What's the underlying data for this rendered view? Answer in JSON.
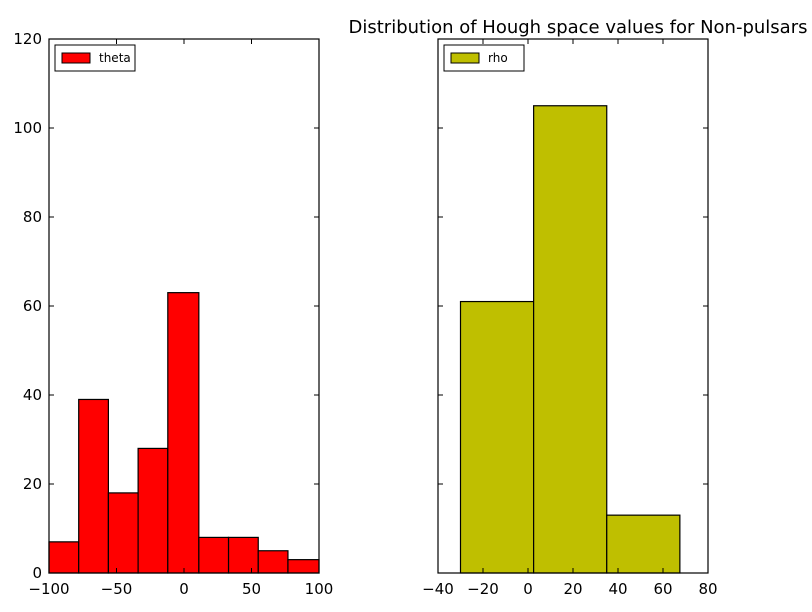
{
  "chart_data": [
    {
      "type": "bar",
      "subtype": "histogram",
      "title": "",
      "xlabel": "",
      "ylabel": "",
      "xlim": [
        -100,
        100
      ],
      "ylim": [
        0,
        120
      ],
      "xticks": [
        -100,
        -50,
        0,
        50,
        100
      ],
      "yticks": [
        0,
        20,
        40,
        60,
        80,
        100,
        120
      ],
      "xtick_labels": [
        "−100",
        "−50",
        "0",
        "50",
        "100"
      ],
      "ytick_labels": [
        "0",
        "20",
        "40",
        "60",
        "80",
        "100",
        "120"
      ],
      "bin_edges": [
        -100,
        -78,
        -56,
        -34,
        -12,
        11,
        33,
        55,
        77,
        100
      ],
      "values": [
        7,
        39,
        18,
        28,
        63,
        8,
        8,
        5,
        3
      ],
      "series": [
        {
          "name": "theta",
          "color": "#ff0000"
        }
      ],
      "legend": {
        "position": "top-left",
        "entries": [
          "theta"
        ]
      },
      "grid": false
    },
    {
      "type": "bar",
      "subtype": "histogram",
      "title": "Distribution of Hough space values for Non-pulsars",
      "xlabel": "",
      "ylabel": "",
      "xlim": [
        -40,
        80
      ],
      "ylim": [
        0,
        120
      ],
      "xticks": [
        -40,
        -20,
        0,
        20,
        40,
        60,
        80
      ],
      "yticks": [
        0,
        20,
        40,
        60,
        80,
        100,
        120
      ],
      "xtick_labels": [
        "−40",
        "−20",
        "0",
        "20",
        "40",
        "60",
        "80"
      ],
      "ytick_labels": [],
      "bin_edges": [
        -30,
        2.5,
        35,
        67.5
      ],
      "values": [
        61,
        105,
        13
      ],
      "series": [
        {
          "name": "rho",
          "color": "#bfbf00"
        }
      ],
      "legend": {
        "position": "top-left",
        "entries": [
          "rho"
        ]
      },
      "grid": false
    }
  ]
}
